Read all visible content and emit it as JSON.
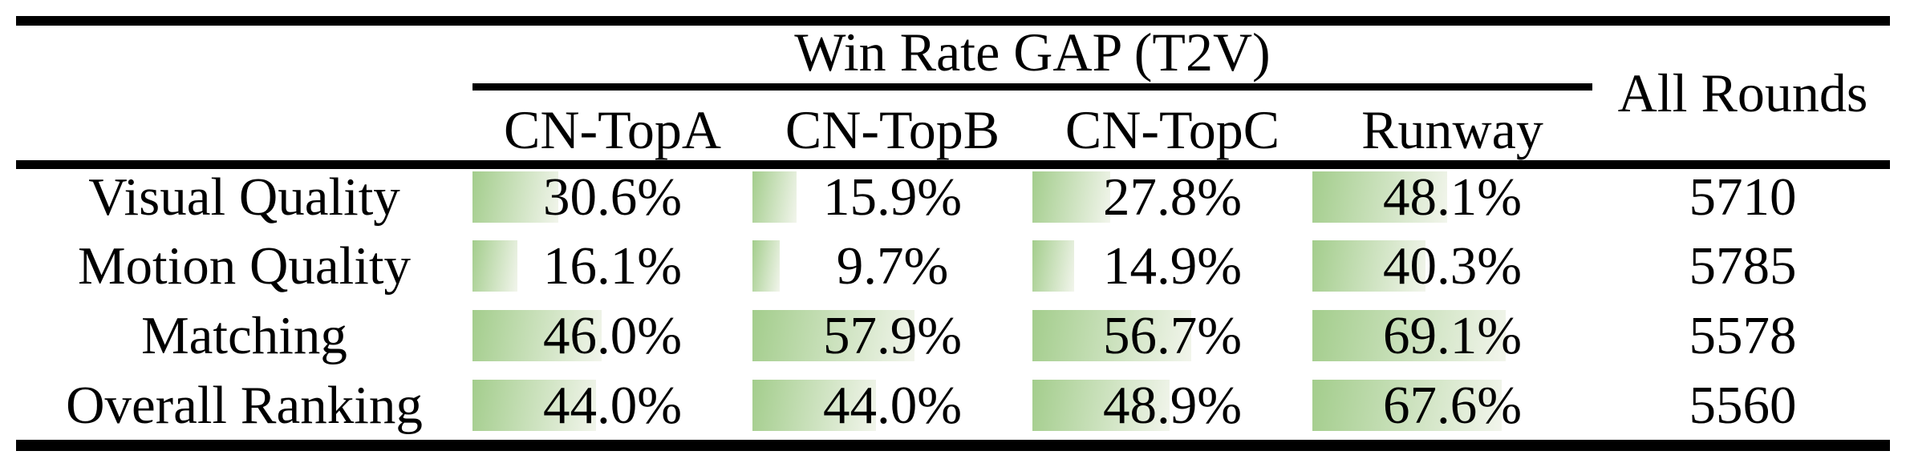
{
  "table": {
    "header": {
      "group_title": "Win Rate GAP (T2V)",
      "columns": [
        "CN-TopA",
        "CN-TopB",
        "CN-TopC",
        "Runway"
      ],
      "all_rounds_label": "All Rounds"
    },
    "rows": [
      {
        "label": "Visual Quality",
        "values": [
          "30.6%",
          "15.9%",
          "27.8%",
          "48.1%"
        ],
        "gap_pcts": [
          30.6,
          15.9,
          27.8,
          48.1
        ],
        "all_rounds": "5710"
      },
      {
        "label": "Motion Quality",
        "values": [
          "16.1%",
          "9.7%",
          "14.9%",
          "40.3%"
        ],
        "gap_pcts": [
          16.1,
          9.7,
          14.9,
          40.3
        ],
        "all_rounds": "5785"
      },
      {
        "label": "Matching",
        "values": [
          "46.0%",
          "57.9%",
          "56.7%",
          "69.1%"
        ],
        "gap_pcts": [
          46.0,
          57.9,
          56.7,
          69.1
        ],
        "all_rounds": "5578"
      },
      {
        "label": "Overall Ranking",
        "values": [
          "44.0%",
          "44.0%",
          "48.9%",
          "67.6%"
        ],
        "gap_pcts": [
          44.0,
          44.0,
          48.9,
          67.6
        ],
        "all_rounds": "5560"
      }
    ],
    "colors": {
      "bar_gradient_start": "#a3cd8c",
      "bar_gradient_end": "#f2f5ec",
      "rule_color": "#000000",
      "text_color": "#000000"
    }
  },
  "chart_data": {
    "type": "table",
    "title": "Win Rate GAP (T2V)",
    "columns": [
      "CN-TopA",
      "CN-TopB",
      "CN-TopC",
      "Runway",
      "All Rounds"
    ],
    "categories": [
      "Visual Quality",
      "Motion Quality",
      "Matching",
      "Overall Ranking"
    ],
    "series": [
      {
        "name": "CN-TopA",
        "values": [
          30.6,
          16.1,
          46.0,
          44.0
        ]
      },
      {
        "name": "CN-TopB",
        "values": [
          15.9,
          9.7,
          57.9,
          44.0
        ]
      },
      {
        "name": "CN-TopC",
        "values": [
          27.8,
          14.9,
          56.7,
          48.9
        ]
      },
      {
        "name": "Runway",
        "values": [
          48.1,
          40.3,
          69.1,
          67.6
        ]
      }
    ],
    "all_rounds": [
      5710,
      5785,
      5578,
      5560
    ],
    "bar_range": [
      0,
      100
    ]
  }
}
